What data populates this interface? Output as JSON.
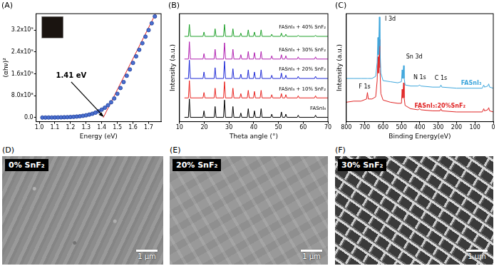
{
  "chart_data": [
    {
      "type": "scatter",
      "title": "(A)",
      "x_label": "Energy (eV)",
      "y_label": "(αhν)²",
      "grid": false,
      "xlim": [
        0.98,
        1.78
      ],
      "xticks": [
        {
          "value": 1,
          "label": "1.0"
        },
        1.1,
        1.2,
        1.3,
        1.4,
        1.5,
        1.6,
        1.7
      ],
      "ylim": [
        -150000000,
        3800000000
      ],
      "yticks": [
        {
          "value": 0,
          "label": "0.0"
        },
        {
          "value": 800000000,
          "label": "8.0x10⁸"
        },
        {
          "value": 1600000000,
          "label": "1.6x10⁹"
        },
        {
          "value": 2400000000,
          "label": "2.4x10⁹"
        },
        {
          "value": 3200000000,
          "label": "3.2x10⁹"
        }
      ],
      "series": [
        {
          "type": "scatter",
          "marker": "circle",
          "color": "#4a6fd0",
          "x": [
            1.02,
            1.04,
            1.06,
            1.08,
            1.1,
            1.12,
            1.14,
            1.16,
            1.18,
            1.2,
            1.22,
            1.24,
            1.26,
            1.28,
            1.3,
            1.32,
            1.34,
            1.36,
            1.38,
            1.4,
            1.42,
            1.44,
            1.46,
            1.48,
            1.5,
            1.52,
            1.54,
            1.56,
            1.58,
            1.6,
            1.62,
            1.64,
            1.66,
            1.68,
            1.7,
            1.72,
            1.74
          ],
          "values": [
            1000000,
            1000000,
            2000000,
            3000000,
            4000000,
            6000000,
            8000000,
            11000000,
            15000000,
            20000000,
            27000000,
            36000000,
            48000000,
            64000000,
            84000000,
            110000000,
            140000000,
            180000000,
            230000000,
            290000000,
            360000000,
            450000000,
            560000000,
            700000000,
            870000000,
            1080000000,
            1300000000,
            1530000000,
            1760000000,
            2000000000,
            2240000000,
            2480000000,
            2720000000,
            2960000000,
            3200000000,
            3450000000,
            3700000000
          ]
        },
        {
          "type": "line",
          "line_style": "solid",
          "color": "#e02020",
          "x": [
            1.41,
            1.745
          ],
          "values": [
            0,
            3800000000
          ]
        }
      ],
      "annotations": [
        {
          "text": "1.41 eV",
          "x": 1.41,
          "y": 0
        }
      ]
    },
    {
      "type": "line",
      "title": "(B)",
      "x_label": "Theta angle (°)",
      "y_label": "Intensity (a.u.)",
      "grid": false,
      "tick_labels": "x",
      "xlim": [
        10,
        70
      ],
      "xticks": [
        10,
        20,
        30,
        40,
        50,
        60,
        70
      ],
      "ylim": [
        0,
        100
      ],
      "x": [
        12,
        13.6,
        14,
        14.4,
        19.5,
        19.9,
        20.3,
        24,
        24.4,
        24.8,
        27.8,
        28.2,
        28.6,
        31.2,
        31.6,
        32,
        34.4,
        34.8,
        35.2,
        37.4,
        37.8,
        38.2,
        39.9,
        40.3,
        40.7,
        42.6,
        43,
        43.4,
        46.9,
        47.3,
        47.7,
        50.8,
        51.2,
        51.6,
        52.6,
        53,
        53.4,
        57.6,
        58,
        58.4,
        64.6,
        65,
        65.4,
        70
      ],
      "series": [
        {
          "name": "FASnI₃",
          "color": "#000000",
          "values": [
            4,
            4,
            21,
            4,
            4,
            10,
            4,
            4,
            14,
            4,
            4,
            20,
            4,
            4,
            14,
            4,
            4,
            8,
            4,
            4,
            12,
            4,
            4,
            10,
            4,
            4,
            12,
            4,
            4,
            7,
            4,
            4,
            9,
            4,
            4,
            7,
            4,
            4,
            6,
            4,
            4,
            6,
            4,
            4
          ]
        },
        {
          "name": "FASnI₃ + 10% SnF₂",
          "color": "#e8231f",
          "values": [
            22,
            22,
            38,
            22,
            22,
            27,
            22,
            22,
            31,
            22,
            22,
            37,
            22,
            22,
            31,
            22,
            22,
            26,
            22,
            22,
            29,
            22,
            22,
            28,
            22,
            22,
            29,
            22,
            22,
            25,
            22,
            22,
            26,
            22,
            22,
            25,
            22,
            22,
            24,
            22,
            22,
            24,
            22,
            22
          ]
        },
        {
          "name": "FASnI₃ + 20% SnF₂",
          "color": "#1f2ad6",
          "values": [
            40,
            40,
            57,
            40,
            40,
            46,
            40,
            40,
            50,
            40,
            40,
            56,
            40,
            40,
            49,
            40,
            40,
            44,
            40,
            40,
            48,
            40,
            40,
            46,
            40,
            40,
            48,
            40,
            40,
            43,
            40,
            40,
            45,
            40,
            40,
            43,
            40,
            40,
            42,
            40,
            40,
            42,
            40,
            40
          ]
        },
        {
          "name": "FASnI₃ + 30% SnF₂",
          "color": "#b01fb0",
          "values": [
            58,
            58,
            74,
            58,
            58,
            63,
            58,
            58,
            67,
            58,
            58,
            73,
            58,
            58,
            67,
            58,
            58,
            62,
            58,
            58,
            65,
            58,
            58,
            64,
            58,
            58,
            65,
            58,
            58,
            61,
            58,
            58,
            62,
            58,
            58,
            61,
            58,
            58,
            60,
            58,
            58,
            60,
            58,
            58
          ]
        },
        {
          "name": "FASnI₃ + 40% SnF₂",
          "color": "#1fa02a",
          "values": [
            79,
            79,
            90,
            79,
            79,
            83,
            79,
            79,
            86,
            79,
            79,
            90,
            79,
            79,
            86,
            79,
            79,
            82,
            79,
            79,
            85,
            79,
            79,
            83,
            79,
            79,
            85,
            79,
            79,
            81,
            79,
            79,
            82,
            79,
            79,
            81,
            79,
            79,
            80,
            79,
            79,
            80,
            79,
            79
          ]
        }
      ]
    },
    {
      "type": "line",
      "title": "(C)",
      "x_label": "Binding Energy(eV)",
      "y_label": "Intensity (a.u.)",
      "grid": false,
      "tick_labels": "x",
      "xlim": [
        800,
        0
      ],
      "xticks": [
        0,
        100,
        200,
        300,
        400,
        500,
        600,
        700,
        800
      ],
      "ylim": [
        0,
        100
      ],
      "x": [
        800,
        760,
        720,
        690,
        685,
        680,
        660,
        640,
        632,
        628,
        625,
        620,
        617,
        612,
        600,
        560,
        520,
        500,
        496,
        493,
        488,
        485,
        480,
        450,
        410,
        400,
        395,
        330,
        290,
        285,
        280,
        200,
        120,
        60,
        52,
        48,
        30,
        25,
        20,
        0
      ],
      "series": [
        {
          "name": "FASnI₃",
          "color": "#3ea6dc",
          "values": [
            40,
            40,
            40,
            40,
            40,
            40,
            40,
            42,
            55,
            78,
            62,
            97,
            70,
            45,
            38,
            37,
            36,
            37,
            48,
            40,
            52,
            40,
            34,
            33,
            33,
            34,
            33,
            32,
            32,
            34,
            32,
            31,
            31,
            31,
            34,
            32,
            33,
            35,
            32,
            31
          ]
        },
        {
          "name": "FASnI₃:20%SnF₂",
          "color": "#e02424",
          "values": [
            18,
            19,
            19,
            21,
            27,
            21,
            21,
            23,
            38,
            60,
            45,
            76,
            50,
            26,
            20,
            18,
            17,
            17,
            30,
            22,
            36,
            22,
            15,
            12,
            11,
            12,
            11,
            10,
            10,
            12,
            10,
            9,
            9,
            9,
            12,
            10,
            11,
            13,
            10,
            9
          ]
        }
      ],
      "annotations": [
        {
          "text": "I 3d",
          "x": 560,
          "y": 95
        },
        {
          "text": "Sn 3d",
          "x": 430,
          "y": 60
        },
        {
          "text": "F 1s",
          "x": 700,
          "y": 32
        },
        {
          "text": "N 1s",
          "x": 400,
          "y": 41
        },
        {
          "text": "C 1s",
          "x": 285,
          "y": 40
        }
      ]
    }
  ],
  "images": [
    {
      "title": "(D)",
      "label": "0% SnF₂",
      "scale_bar": "1 μm"
    },
    {
      "title": "(E)",
      "label": "20% SnF₂",
      "scale_bar": "1 μm"
    },
    {
      "title": "(F)",
      "label": "30% SnF₂",
      "scale_bar": "1 μm"
    }
  ]
}
